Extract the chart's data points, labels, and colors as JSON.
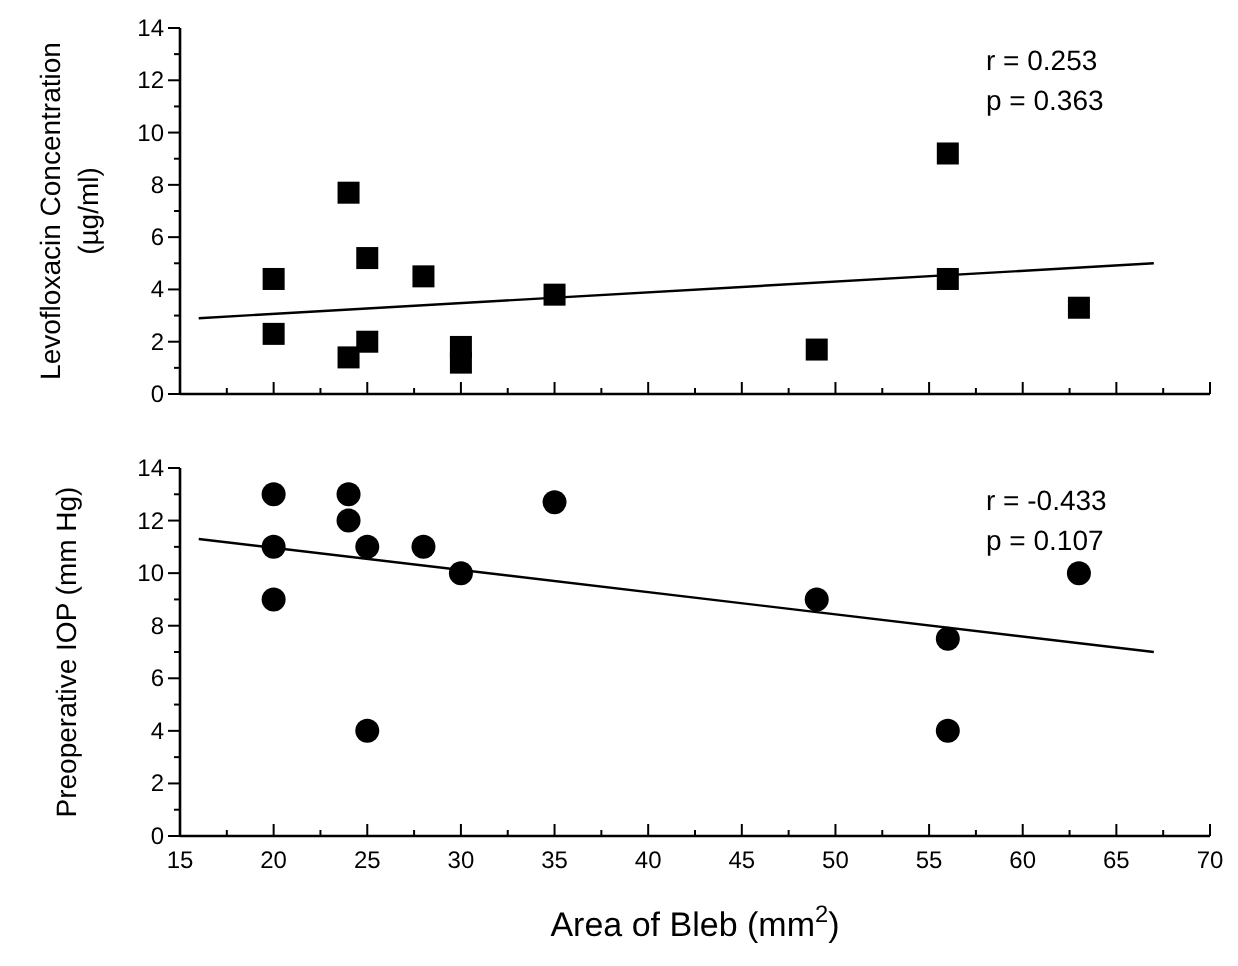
{
  "chart_data": [
    {
      "type": "scatter",
      "ylabel": "Levofloxacin Concentration (µg/ml)",
      "xlim": [
        15,
        70
      ],
      "ylim": [
        0,
        14
      ],
      "xticks": [
        15,
        {
          "value": 17.5,
          "label": null
        },
        20,
        {
          "value": 22.5,
          "label": null
        },
        25,
        {
          "value": 27.5,
          "label": null
        },
        30,
        {
          "value": 32.5,
          "label": null
        },
        35,
        {
          "value": 37.5,
          "label": null
        },
        40,
        {
          "value": 42.5,
          "label": null
        },
        45,
        {
          "value": 47.5,
          "label": null
        },
        50,
        {
          "value": 52.5,
          "label": null
        },
        55,
        {
          "value": 57.5,
          "label": null
        },
        60,
        {
          "value": 62.5,
          "label": null
        },
        65,
        {
          "value": 67.5,
          "label": null
        },
        70
      ],
      "yticks": [
        0,
        {
          "value": 1,
          "label": null
        },
        2,
        {
          "value": 3,
          "label": null
        },
        4,
        {
          "value": 5,
          "label": null
        },
        6,
        {
          "value": 7,
          "label": null
        },
        8,
        {
          "value": 9,
          "label": null
        },
        10,
        {
          "value": 11,
          "label": null
        },
        12,
        {
          "value": 13,
          "label": null
        },
        14
      ],
      "tick_labels": "y",
      "annotations": [
        "r = 0.253",
        "p = 0.363"
      ],
      "series": [
        {
          "marker": "square",
          "color": "#000000",
          "x": [
            20,
            20,
            24,
            24,
            25,
            25,
            28,
            30,
            30,
            35,
            49,
            56,
            56,
            63
          ],
          "values": [
            4.4,
            2.3,
            7.7,
            1.4,
            5.2,
            2.0,
            4.5,
            1.8,
            1.2,
            3.8,
            1.7,
            9.2,
            4.4,
            3.3
          ]
        },
        {
          "type": "line",
          "marker": "none",
          "color": "#000000",
          "x": [
            16,
            67
          ],
          "values": [
            2.9,
            5.0
          ]
        }
      ]
    },
    {
      "type": "scatter",
      "xlabel": "Area of Bleb (mm$^{2}$)",
      "ylabel": "Preoperative IOP (mm Hg)",
      "xlim": [
        15,
        70
      ],
      "ylim": [
        0,
        14
      ],
      "xticks": [
        15,
        {
          "value": 17.5,
          "label": null
        },
        20,
        {
          "value": 22.5,
          "label": null
        },
        25,
        {
          "value": 27.5,
          "label": null
        },
        30,
        {
          "value": 32.5,
          "label": null
        },
        35,
        {
          "value": 37.5,
          "label": null
        },
        40,
        {
          "value": 42.5,
          "label": null
        },
        45,
        {
          "value": 47.5,
          "label": null
        },
        50,
        {
          "value": 52.5,
          "label": null
        },
        55,
        {
          "value": 57.5,
          "label": null
        },
        60,
        {
          "value": 62.5,
          "label": null
        },
        65,
        {
          "value": 67.5,
          "label": null
        },
        70
      ],
      "yticks": [
        0,
        {
          "value": 1,
          "label": null
        },
        2,
        {
          "value": 3,
          "label": null
        },
        4,
        {
          "value": 5,
          "label": null
        },
        6,
        {
          "value": 7,
          "label": null
        },
        8,
        {
          "value": 9,
          "label": null
        },
        10,
        {
          "value": 11,
          "label": null
        },
        12,
        {
          "value": 13,
          "label": null
        },
        14
      ],
      "annotations": [
        "r = -0.433",
        "p = 0.107"
      ],
      "series": [
        {
          "marker": "circle",
          "color": "#000000",
          "x": [
            20,
            20,
            20,
            24,
            24,
            25,
            25,
            28,
            30,
            35,
            49,
            56,
            56,
            63
          ],
          "values": [
            13,
            11,
            9,
            13,
            12,
            11,
            4,
            11,
            10,
            12.7,
            9,
            7.5,
            4,
            10
          ]
        },
        {
          "type": "line",
          "marker": "none",
          "color": "#000000",
          "x": [
            16,
            67
          ],
          "values": [
            11.3,
            7.0
          ]
        }
      ]
    }
  ]
}
